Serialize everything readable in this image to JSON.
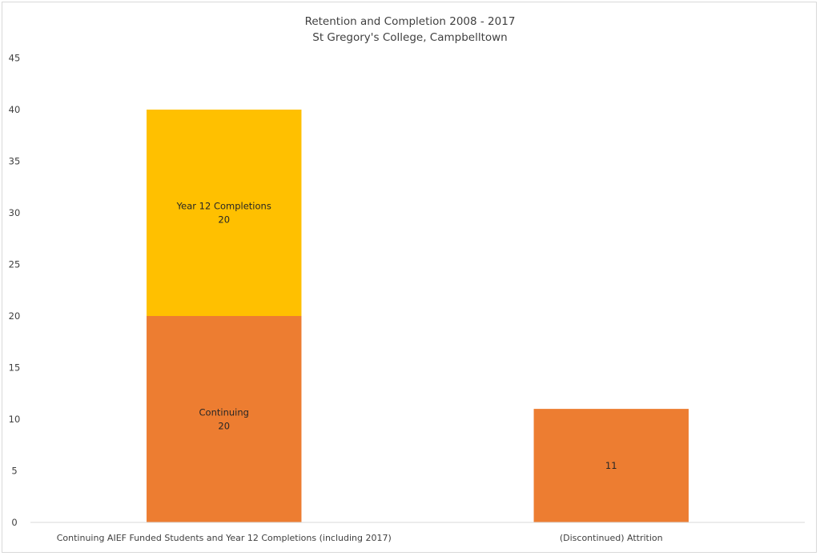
{
  "chart_data": {
    "type": "bar",
    "stacked": true,
    "title": "Retention and Completion 2008 - 2017",
    "subtitle": "St Gregory's College, Campbelltown",
    "xlabel": "",
    "ylabel": "",
    "ylim": [
      0,
      45
    ],
    "yticks": [
      0,
      5,
      10,
      15,
      20,
      25,
      30,
      35,
      40,
      45
    ],
    "grid": false,
    "legend": "none",
    "categories": [
      "Continuing AIEF Funded Students and Year 12 Completions (including 2017)",
      "(Discontinued) Attrition"
    ],
    "series": [
      {
        "values": [
          20,
          11
        ],
        "color": "#ED7D31",
        "data_labels": [
          [
            "Continuing",
            "20"
          ],
          [
            "11"
          ]
        ]
      },
      {
        "values": [
          20,
          null
        ],
        "color": "#FFC000",
        "data_labels": [
          [
            "Year 12 Completions",
            "20"
          ],
          null
        ]
      }
    ],
    "axis_color": "#d9d9d9"
  }
}
